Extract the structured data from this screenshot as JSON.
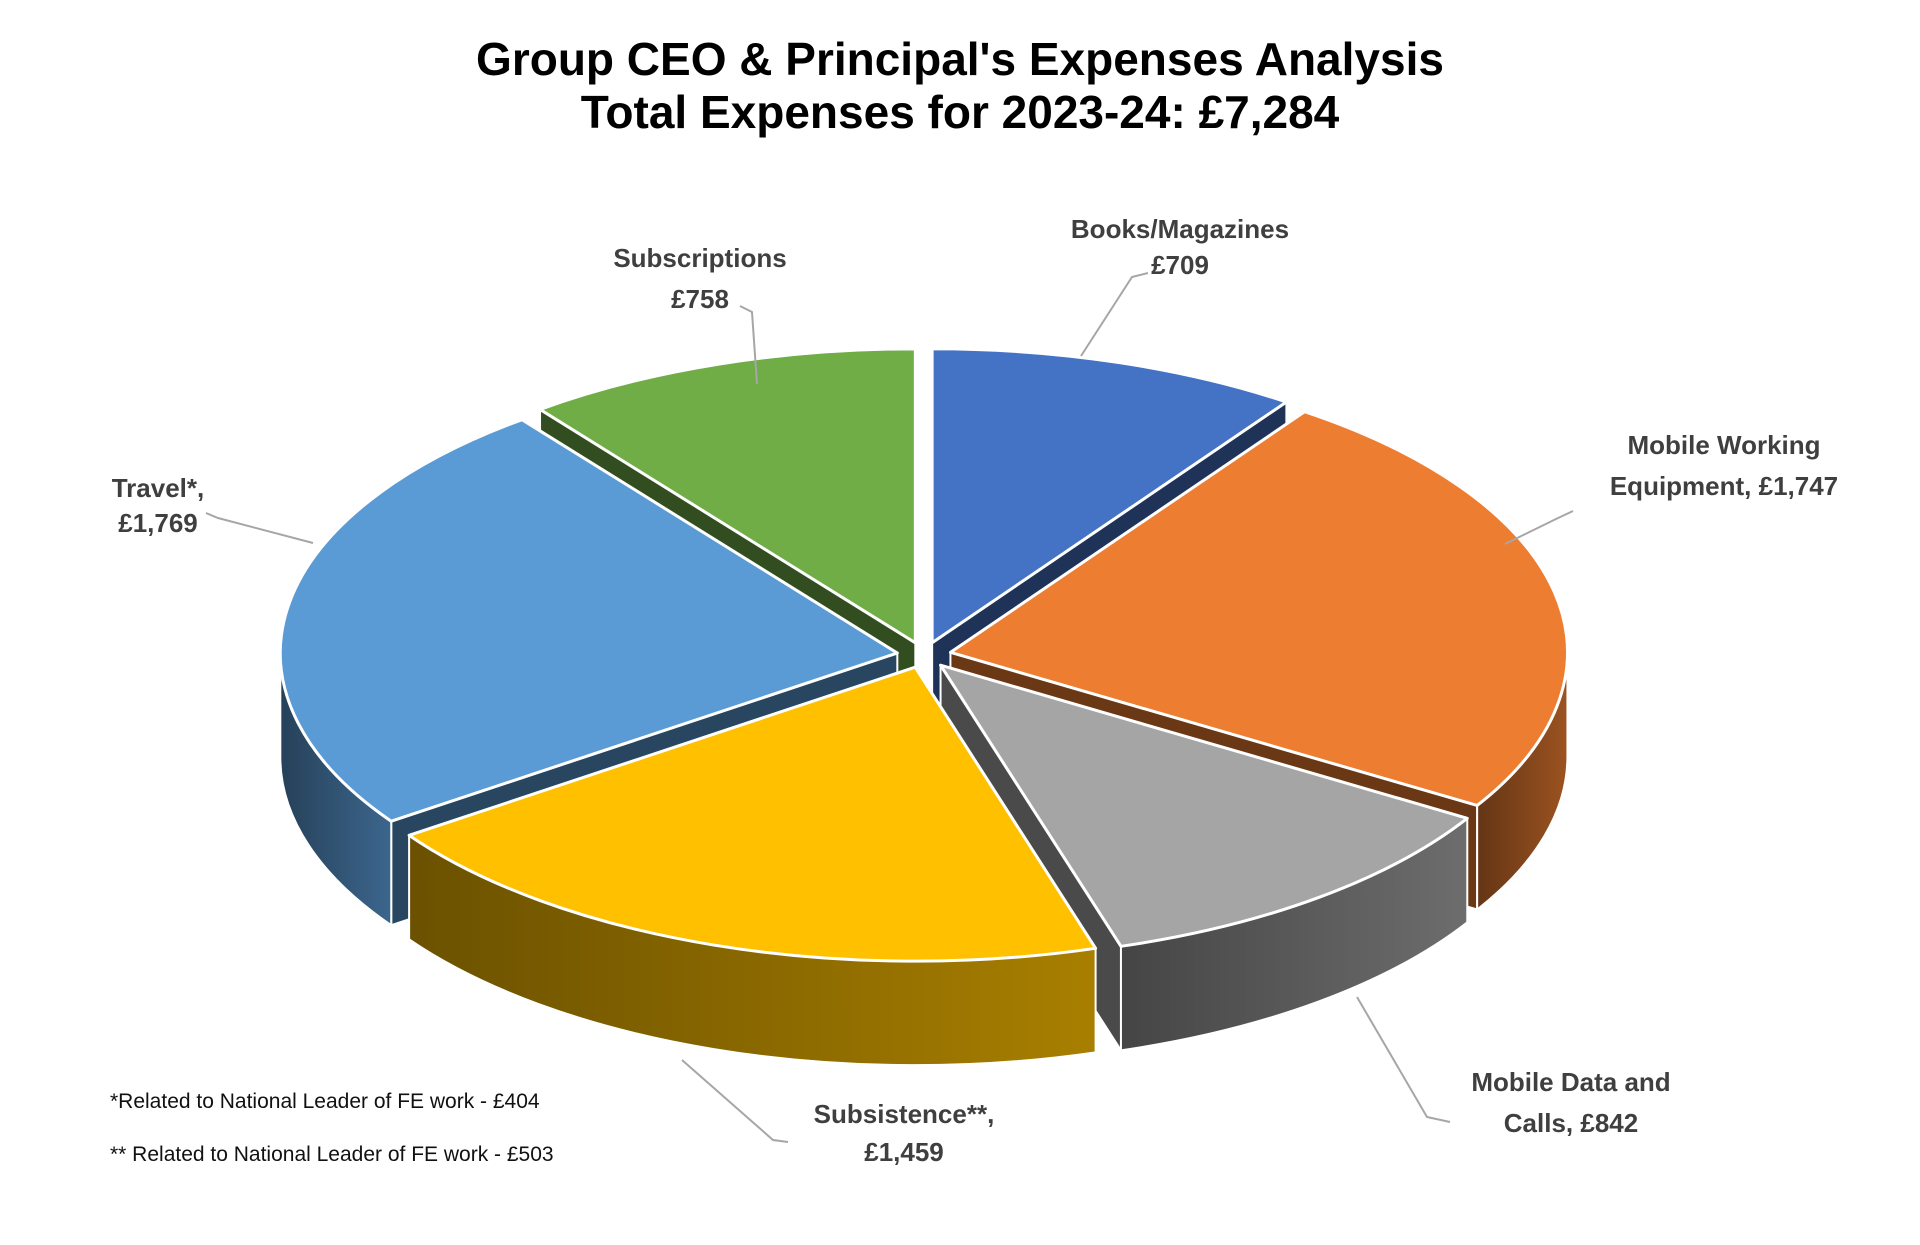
{
  "title": {
    "line1": "Group CEO & Principal's Expenses Analysis",
    "line2": "Total Expenses for 2023-24: £7,284"
  },
  "chart_data": {
    "type": "pie",
    "style": "3d-exploded",
    "total": 7284,
    "total_label": "£7,284",
    "currency": "£",
    "start_angle_deg": 0,
    "direction": "clockwise",
    "legend_position": "none",
    "slices": [
      {
        "label": "Books/Magazines",
        "value": 709,
        "display_lines": [
          "Books/Magazines",
          "£709"
        ],
        "color": "#4472C4"
      },
      {
        "label": "Mobile Working Equipment",
        "value": 1747,
        "display_lines": [
          "Mobile Working",
          "Equipment, £1,747"
        ],
        "color": "#ED7D31"
      },
      {
        "label": "Mobile Data and Calls",
        "value": 842,
        "display_lines": [
          "Mobile Data and",
          "Calls, £842"
        ],
        "color": "#A5A5A5"
      },
      {
        "label": "Subsistence",
        "value": 1459,
        "display_lines": [
          "Subsistence**,",
          "£1,459"
        ],
        "color": "#FFC000"
      },
      {
        "label": "Travel",
        "value": 1769,
        "display_lines": [
          "Travel*,",
          "£1,769"
        ],
        "color": "#5B9BD5"
      },
      {
        "label": "Subscriptions",
        "value": 758,
        "display_lines": [
          "Subscriptions",
          "£758"
        ],
        "color": "#70AD47"
      }
    ],
    "label_text_color": "#3f3f3f",
    "leader_line_color": "#a6a6a6"
  },
  "footnotes": [
    "*Related to National Leader of FE work - £404",
    "** Related to National Leader of FE work - £503"
  ]
}
